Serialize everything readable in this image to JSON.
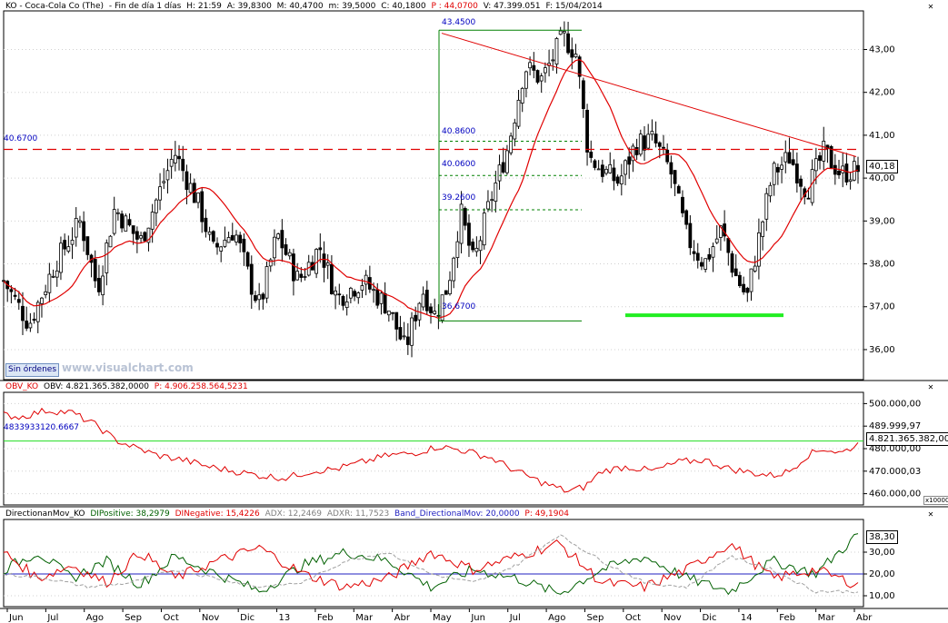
{
  "header": {
    "main": {
      "symbol": "KO - Coca-Cola Co (The)",
      "period": "- Fin de día 1 días",
      "time": "H: 21:59",
      "open": "A: 39,8300",
      "high": "M: 40,4700",
      "low": "m: 39,5000",
      "close": "C: 40,1800",
      "p": "P : 44,0700",
      "volume": "V: 47.399.051",
      "date": "F: 15/04/2014"
    },
    "obv": {
      "name": "OBV_KO",
      "value": "OBV: 4.821.365.382,0000",
      "p": "P: 4.906.258.564,5231"
    },
    "dmi": {
      "name": "DirectionanMov_KO",
      "dip": "DIPositive: 38,2979",
      "din": "DINegative: 15,4226",
      "adx": "ADX: 12,2469",
      "adxr": "ADXR: 11,7523",
      "band": "Band_DirectionalMov: 20,0000",
      "p": "P: 49,1904"
    }
  },
  "ui": {
    "sin_ordenes": "Sin órdenes",
    "watermark": "www.visualchart.com",
    "scale_note": "x10000"
  },
  "colors": {
    "candle": "#000000",
    "moving_average": "#e00000",
    "trendline": "#e00000",
    "resistance_dashed": "#e00000",
    "fib_lines": "#008000",
    "support_bar": "#22ee22",
    "obv_line": "#e00000",
    "obv_ref": "#22dd22",
    "di_positive": "#006000",
    "di_negative": "#e00000",
    "adx": "#a0a0a0",
    "band": "#2020c0",
    "label_blue": "#0000c0"
  },
  "chart_data": [
    {
      "type": "candlestick",
      "panel": "price",
      "ylim": [
        35.3,
        43.9
      ],
      "y_ticks": [
        36,
        37,
        38,
        39,
        40,
        41,
        42,
        43
      ],
      "y_tick_labels": [
        "36,00",
        "37,00",
        "38,00",
        "39,00",
        "40,00",
        "41,00",
        "42,00",
        "43,00"
      ],
      "last_value_label": "40,18",
      "price_points_x": [
        0,
        0.03,
        0.06,
        0.09,
        0.11,
        0.13,
        0.16,
        0.2,
        0.23,
        0.245,
        0.27,
        0.29,
        0.3,
        0.32,
        0.345,
        0.37,
        0.39,
        0.42,
        0.45,
        0.47,
        0.49,
        0.505,
        0.52,
        0.535,
        0.55,
        0.57,
        0.59,
        0.61,
        0.63,
        0.655,
        0.67,
        0.685,
        0.7,
        0.72,
        0.74,
        0.76,
        0.78,
        0.8,
        0.82,
        0.84,
        0.855,
        0.87,
        0.885,
        0.9,
        0.92,
        0.94,
        0.96,
        0.98,
        1.0
      ],
      "price_points_y": [
        37.6,
        36.6,
        38.0,
        39.0,
        37.4,
        39.3,
        38.5,
        40.6,
        39.3,
        38.3,
        38.8,
        37.5,
        37.0,
        38.7,
        37.6,
        38.4,
        37.2,
        37.6,
        37.0,
        36.0,
        37.4,
        36.8,
        37.5,
        39.2,
        38.0,
        39.5,
        40.7,
        42.6,
        42.3,
        43.3,
        42.9,
        40.5,
        40.2,
        39.9,
        40.8,
        40.9,
        40.2,
        38.6,
        38.0,
        38.8,
        37.8,
        37.2,
        38.7,
        40.1,
        40.5,
        39.7,
        40.6,
        40.1,
        40.2
      ],
      "x_axis": {
        "month_labels": [
          "Jun",
          "Jul",
          "Ago",
          "Sep",
          "Oct",
          "Nov",
          "Dic",
          "13",
          "Feb",
          "Mar",
          "Abr",
          "May",
          "Jun",
          "Jul",
          "Ago",
          "Sep",
          "Oct",
          "Nov",
          "Dic",
          "14",
          "Feb",
          "Mar",
          "Abr"
        ]
      },
      "annotations": {
        "resistance": {
          "value": 40.67,
          "label": "40.6700"
        },
        "fib_high": {
          "value": 43.45,
          "label": "43.4500"
        },
        "fib_low": {
          "value": 36.67,
          "label": "36.6700"
        },
        "fib_levels": [
          {
            "value": 40.86,
            "label": "40.8600"
          },
          {
            "value": 40.06,
            "label": "40.0600"
          },
          {
            "value": 39.26,
            "label": "39.2600"
          }
        ],
        "support_level": 36.8
      }
    },
    {
      "type": "line",
      "panel": "obv",
      "ylim": [
        455000,
        505000
      ],
      "y_ticks": [
        460000,
        470000,
        480000,
        490000,
        500000
      ],
      "y_tick_labels": [
        "460.000,00",
        "470.000,03",
        "480.000,00",
        "489.999,97",
        "500.000,00"
      ],
      "reference_value_label": "4833933120.6667",
      "reference_value": 483393,
      "last_value_label": "4.821.365.382,00",
      "series": [
        {
          "x": [
            0,
            0.02,
            0.05,
            0.08,
            0.11,
            0.13,
            0.15,
            0.18,
            0.21,
            0.24,
            0.27,
            0.3,
            0.33,
            0.36,
            0.39,
            0.42,
            0.45,
            0.48,
            0.51,
            0.54,
            0.57,
            0.6,
            0.63,
            0.66,
            0.68,
            0.7,
            0.73,
            0.76,
            0.79,
            0.82,
            0.85,
            0.88,
            0.9,
            0.92,
            0.94,
            0.96,
            0.98,
            1.0
          ],
          "values": [
            495000,
            494000,
            497000,
            496000,
            490000,
            484000,
            481000,
            477000,
            475000,
            472000,
            470000,
            468000,
            467000,
            470000,
            471000,
            474000,
            477000,
            478000,
            481000,
            479000,
            476000,
            470000,
            465000,
            461000,
            463000,
            470000,
            472000,
            470000,
            474000,
            475000,
            471000,
            469000,
            468000,
            470000,
            477000,
            480000,
            478000,
            482000
          ]
        }
      ]
    },
    {
      "type": "line",
      "panel": "dmi",
      "ylim": [
        5,
        45
      ],
      "y_ticks": [
        10,
        20,
        30
      ],
      "y_tick_labels": [
        "10,00",
        "20,00",
        "30,00"
      ],
      "last_value_label": "38,30",
      "band_value": 20,
      "series": [
        {
          "name": "DIPositive",
          "x": [
            0,
            0.04,
            0.08,
            0.12,
            0.16,
            0.2,
            0.25,
            0.3,
            0.35,
            0.4,
            0.45,
            0.5,
            0.55,
            0.6,
            0.65,
            0.7,
            0.75,
            0.8,
            0.85,
            0.9,
            0.95,
            1.0
          ],
          "values": [
            22,
            30,
            18,
            26,
            15,
            28,
            20,
            12,
            24,
            30,
            26,
            14,
            22,
            18,
            11,
            22,
            28,
            18,
            12,
            26,
            20,
            38
          ]
        },
        {
          "name": "DINegative",
          "x": [
            0,
            0.04,
            0.08,
            0.12,
            0.16,
            0.2,
            0.25,
            0.3,
            0.35,
            0.4,
            0.45,
            0.5,
            0.55,
            0.6,
            0.65,
            0.7,
            0.75,
            0.8,
            0.85,
            0.9,
            0.95,
            1.0
          ],
          "values": [
            30,
            18,
            24,
            16,
            30,
            18,
            26,
            32,
            20,
            14,
            18,
            30,
            22,
            28,
            34,
            16,
            14,
            22,
            34,
            18,
            22,
            15
          ]
        },
        {
          "name": "ADX",
          "x": [
            0,
            0.05,
            0.1,
            0.15,
            0.2,
            0.25,
            0.3,
            0.35,
            0.4,
            0.45,
            0.5,
            0.55,
            0.6,
            0.65,
            0.7,
            0.75,
            0.8,
            0.85,
            0.9,
            0.95,
            1.0
          ],
          "values": [
            20,
            18,
            14,
            16,
            22,
            18,
            14,
            16,
            26,
            30,
            20,
            16,
            24,
            38,
            26,
            16,
            14,
            28,
            22,
            12,
            12
          ]
        }
      ]
    }
  ]
}
